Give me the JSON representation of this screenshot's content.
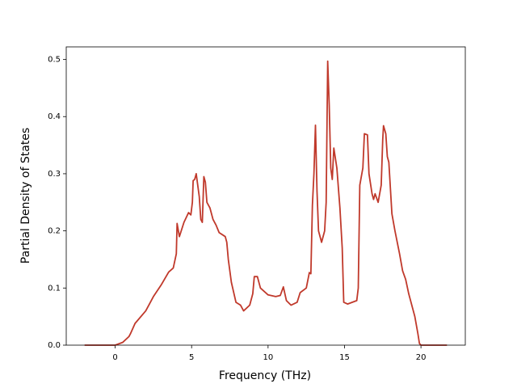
{
  "chart_data": {
    "type": "line",
    "x_label": "Frequency (THz)",
    "y_label": "Partial Density of States",
    "x": [
      -2,
      0,
      0.5,
      0.9,
      1.0,
      1.3,
      2,
      2.2,
      2.5,
      3,
      3.5,
      3.8,
      4.0,
      4.05,
      4.2,
      4.5,
      4.8,
      4.95,
      5.05,
      5.1,
      5.2,
      5.3,
      5.5,
      5.6,
      5.7,
      5.8,
      5.9,
      6.0,
      6.2,
      6.4,
      6.6,
      6.8,
      7.2,
      7.3,
      7.4,
      7.6,
      7.9,
      8.2,
      8.4,
      8.8,
      9.0,
      9.1,
      9.3,
      9.5,
      10,
      10.5,
      10.8,
      11,
      11.2,
      11.5,
      11.9,
      12.1,
      12.5,
      12.7,
      12.8,
      12.9,
      13.0,
      13.1,
      13.2,
      13.3,
      13.5,
      13.7,
      13.8,
      13.9,
      14.0,
      14.1,
      14.2,
      14.3,
      14.5,
      14.7,
      14.85,
      14.95,
      15.2,
      15.8,
      15.9,
      16.0,
      16.2,
      16.3,
      16.5,
      16.6,
      16.8,
      16.9,
      17.0,
      17.2,
      17.4,
      17.5,
      17.55,
      17.7,
      17.8,
      17.9,
      18.1,
      18.3,
      18.6,
      18.8,
      19.0,
      19.2,
      19.6,
      19.8,
      19.9,
      20,
      21.7
    ],
    "series": [
      {
        "color": "#c0392b",
        "values": [
          0,
          0,
          0.005,
          0.015,
          0.02,
          0.038,
          0.06,
          0.07,
          0.085,
          0.105,
          0.128,
          0.135,
          0.16,
          0.213,
          0.19,
          0.215,
          0.232,
          0.228,
          0.25,
          0.288,
          0.29,
          0.3,
          0.26,
          0.22,
          0.215,
          0.295,
          0.285,
          0.25,
          0.24,
          0.22,
          0.21,
          0.197,
          0.19,
          0.18,
          0.15,
          0.11,
          0.075,
          0.07,
          0.06,
          0.07,
          0.09,
          0.12,
          0.12,
          0.1,
          0.088,
          0.085,
          0.087,
          0.102,
          0.078,
          0.07,
          0.075,
          0.092,
          0.1,
          0.127,
          0.125,
          0.245,
          0.3,
          0.385,
          0.27,
          0.2,
          0.18,
          0.2,
          0.25,
          0.497,
          0.42,
          0.31,
          0.29,
          0.345,
          0.31,
          0.24,
          0.17,
          0.075,
          0.072,
          0.078,
          0.1,
          0.28,
          0.31,
          0.37,
          0.368,
          0.3,
          0.265,
          0.255,
          0.265,
          0.25,
          0.28,
          0.36,
          0.384,
          0.37,
          0.33,
          0.32,
          0.23,
          0.2,
          0.16,
          0.13,
          0.115,
          0.09,
          0.05,
          0.02,
          0.003,
          0,
          0
        ]
      }
    ],
    "xlim": [
      -3.2,
      22.9
    ],
    "ylim": [
      0,
      0.522
    ],
    "xticks": [
      0,
      5,
      10,
      15,
      20
    ],
    "yticks": [
      {
        "value": 0,
        "label": "0.0"
      },
      0.1,
      0.2,
      0.3,
      0.4,
      0.5
    ]
  }
}
